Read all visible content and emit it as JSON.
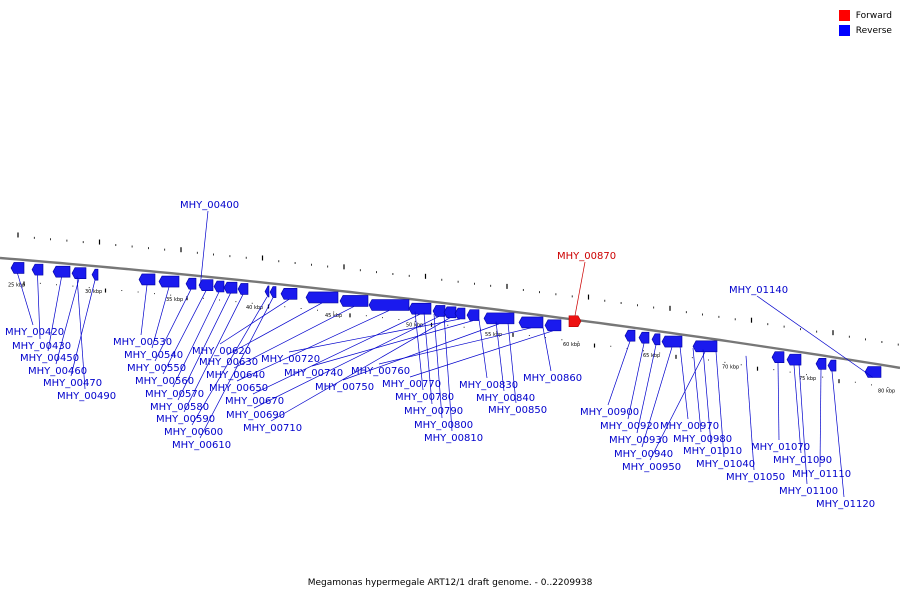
{
  "caption": "Megamonas hypermegale ART12/1 draft genome. - 0..2209938",
  "legend": [
    {
      "label": "Forward",
      "color": "#ff0000"
    },
    {
      "label": "Reverse",
      "color": "#0000ff"
    }
  ],
  "colors": {
    "forward": "#ee1111",
    "reverse": "#1a1aee",
    "backbone": "#777777",
    "ticks": "#000000"
  },
  "scale_labels": [
    "25 kbp",
    "30 kbp",
    "35 kbp",
    "40 kbp",
    "45 kbp",
    "50 kbp",
    "55 kbp",
    "60 kbp",
    "65 kbp",
    "70 kbp",
    "75 kbp",
    "80 kbp"
  ],
  "genes": [
    {
      "id": "MHY_00400",
      "strand": "reverse"
    },
    {
      "id": "MHY_00420",
      "strand": "reverse"
    },
    {
      "id": "MHY_00430",
      "strand": "reverse"
    },
    {
      "id": "MHY_00450",
      "strand": "reverse"
    },
    {
      "id": "MHY_00460",
      "strand": "reverse"
    },
    {
      "id": "MHY_00470",
      "strand": "reverse"
    },
    {
      "id": "MHY_00490",
      "strand": "reverse"
    },
    {
      "id": "MHY_00530",
      "strand": "reverse"
    },
    {
      "id": "MHY_00540",
      "strand": "reverse"
    },
    {
      "id": "MHY_00550",
      "strand": "reverse"
    },
    {
      "id": "MHY_00560",
      "strand": "reverse"
    },
    {
      "id": "MHY_00570",
      "strand": "reverse"
    },
    {
      "id": "MHY_00580",
      "strand": "reverse"
    },
    {
      "id": "MHY_00590",
      "strand": "reverse"
    },
    {
      "id": "MHY_00600",
      "strand": "reverse"
    },
    {
      "id": "MHY_00610",
      "strand": "reverse"
    },
    {
      "id": "MHY_00620",
      "strand": "reverse"
    },
    {
      "id": "MHY_00630",
      "strand": "reverse"
    },
    {
      "id": "MHY_00640",
      "strand": "reverse"
    },
    {
      "id": "MHY_00650",
      "strand": "reverse"
    },
    {
      "id": "MHY_00670",
      "strand": "reverse"
    },
    {
      "id": "MHY_00690",
      "strand": "reverse"
    },
    {
      "id": "MHY_00710",
      "strand": "reverse"
    },
    {
      "id": "MHY_00720",
      "strand": "reverse"
    },
    {
      "id": "MHY_00740",
      "strand": "reverse"
    },
    {
      "id": "MHY_00750",
      "strand": "reverse"
    },
    {
      "id": "MHY_00760",
      "strand": "reverse"
    },
    {
      "id": "MHY_00770",
      "strand": "reverse"
    },
    {
      "id": "MHY_00780",
      "strand": "reverse"
    },
    {
      "id": "MHY_00790",
      "strand": "reverse"
    },
    {
      "id": "MHY_00800",
      "strand": "reverse"
    },
    {
      "id": "MHY_00810",
      "strand": "reverse"
    },
    {
      "id": "MHY_00830",
      "strand": "reverse"
    },
    {
      "id": "MHY_00840",
      "strand": "reverse"
    },
    {
      "id": "MHY_00850",
      "strand": "reverse"
    },
    {
      "id": "MHY_00860",
      "strand": "reverse"
    },
    {
      "id": "MHY_00870",
      "strand": "forward"
    },
    {
      "id": "MHY_00900",
      "strand": "reverse"
    },
    {
      "id": "MHY_00920",
      "strand": "reverse"
    },
    {
      "id": "MHY_00930",
      "strand": "reverse"
    },
    {
      "id": "MHY_00940",
      "strand": "reverse"
    },
    {
      "id": "MHY_00950",
      "strand": "reverse"
    },
    {
      "id": "MHY_00970",
      "strand": "reverse"
    },
    {
      "id": "MHY_00980",
      "strand": "reverse"
    },
    {
      "id": "MHY_01010",
      "strand": "reverse"
    },
    {
      "id": "MHY_01040",
      "strand": "reverse"
    },
    {
      "id": "MHY_01050",
      "strand": "reverse"
    },
    {
      "id": "MHY_01070",
      "strand": "reverse"
    },
    {
      "id": "MHY_01090",
      "strand": "reverse"
    },
    {
      "id": "MHY_01100",
      "strand": "reverse"
    },
    {
      "id": "MHY_01110",
      "strand": "reverse"
    },
    {
      "id": "MHY_01120",
      "strand": "reverse"
    },
    {
      "id": "MHY_01140",
      "strand": "reverse"
    }
  ]
}
